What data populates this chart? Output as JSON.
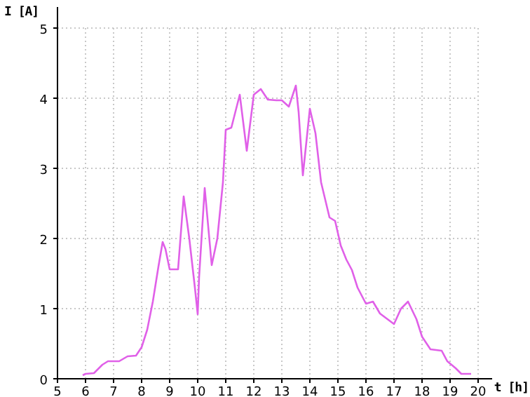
{
  "chart_data": {
    "type": "line",
    "xlabel": "t [h]",
    "ylabel": "I [A]",
    "xlim": [
      5,
      20.5
    ],
    "xticks": [
      5,
      6,
      7,
      8,
      9,
      10,
      11,
      12,
      13,
      14,
      15,
      16,
      17,
      18,
      19,
      20
    ],
    "ylim": [
      0,
      5.3
    ],
    "yticks": [
      0,
      1,
      2,
      3,
      4,
      5
    ],
    "grid": true,
    "marker": "none",
    "line_style": "solid",
    "series": [
      {
        "color": "#e060e8",
        "x": [
          5.9,
          6.0,
          6.3,
          6.6,
          6.8,
          7.2,
          7.5,
          7.8,
          8.0,
          8.2,
          8.4,
          8.6,
          8.75,
          8.85,
          9.0,
          9.3,
          9.5,
          9.7,
          9.9,
          10.0,
          10.05,
          10.25,
          10.5,
          10.7,
          10.9,
          11.0,
          11.2,
          11.5,
          11.75,
          12.0,
          12.25,
          12.5,
          12.8,
          13.0,
          13.25,
          13.5,
          13.6,
          13.75,
          14.0,
          14.2,
          14.4,
          14.7,
          14.9,
          15.1,
          15.3,
          15.5,
          15.7,
          16.0,
          16.25,
          16.5,
          16.8,
          17.0,
          17.25,
          17.5,
          17.8,
          18.0,
          18.3,
          18.7,
          18.9,
          19.2,
          19.4,
          19.75
        ],
        "values": [
          0.05,
          0.07,
          0.08,
          0.2,
          0.25,
          0.25,
          0.32,
          0.33,
          0.45,
          0.7,
          1.1,
          1.6,
          1.95,
          1.85,
          1.56,
          1.56,
          2.6,
          2.0,
          1.3,
          0.92,
          1.45,
          2.72,
          1.62,
          2.0,
          2.8,
          3.55,
          3.58,
          4.05,
          3.25,
          4.05,
          4.13,
          3.98,
          3.97,
          3.97,
          3.88,
          4.18,
          3.8,
          2.9,
          3.85,
          3.5,
          2.8,
          2.3,
          2.25,
          1.9,
          1.7,
          1.55,
          1.3,
          1.07,
          1.1,
          0.93,
          0.84,
          0.78,
          1.0,
          1.1,
          0.85,
          0.6,
          0.42,
          0.4,
          0.25,
          0.15,
          0.07,
          0.07
        ]
      }
    ]
  }
}
